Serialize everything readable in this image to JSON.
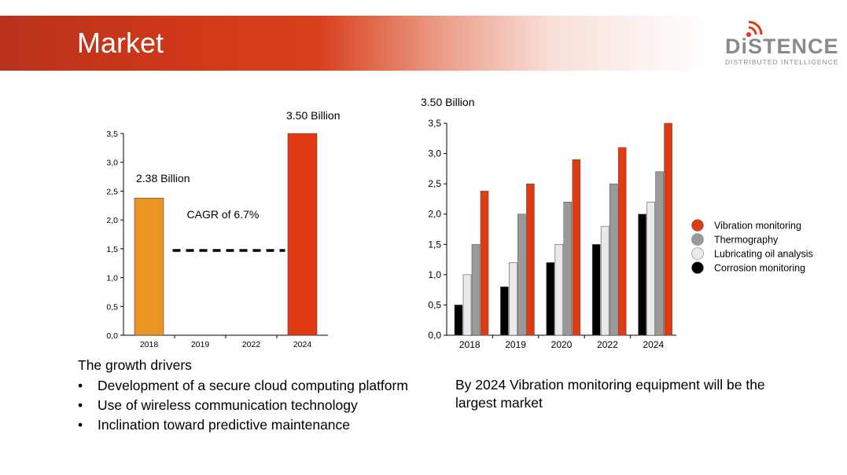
{
  "slide": {
    "title": "Market"
  },
  "logo": {
    "word": "DiSTENCE",
    "tagline": "DISTRIBUTED INTELLIGENCE"
  },
  "colors": {
    "vibration": "#e03a12",
    "thermography": "#9a9a9a",
    "lubricating": "#eaeaea",
    "corrosion": "#000000",
    "bar_2018": "#eb9524"
  },
  "chart_data": [
    {
      "type": "bar",
      "categories": [
        "2018",
        "2019",
        "2022",
        "2024"
      ],
      "values": [
        2.38,
        null,
        null,
        3.5
      ],
      "ylim": [
        0,
        3.5
      ],
      "yticks": [
        "0,0",
        "0,5",
        "1,0",
        "1,5",
        "2,0",
        "2,5",
        "3,0",
        "3,5"
      ],
      "annotations": {
        "label_2018": "2.38 Billion",
        "label_2024": "3.50 Billion",
        "cagr": "CAGR of 6.7%"
      }
    },
    {
      "type": "bar",
      "title": "3.50 Billion",
      "categories": [
        "2018",
        "2019",
        "2020",
        "2022",
        "2024"
      ],
      "ylim": [
        0,
        3.5
      ],
      "yticks": [
        "0,0",
        "0,5",
        "1,0",
        "1,5",
        "2,0",
        "2,5",
        "3,0",
        "3,5"
      ],
      "series": [
        {
          "name": "Corrosion monitoring",
          "values": [
            0.5,
            0.8,
            1.2,
            1.5,
            2.0
          ]
        },
        {
          "name": "Lubricating oil analysis",
          "values": [
            1.0,
            1.2,
            1.5,
            1.8,
            2.2
          ]
        },
        {
          "name": "Thermography",
          "values": [
            1.5,
            2.0,
            2.2,
            2.5,
            2.7
          ]
        },
        {
          "name": "Vibration monitoring",
          "values": [
            2.38,
            2.5,
            2.9,
            3.1,
            3.5
          ]
        }
      ],
      "legend": [
        "Vibration monitoring",
        "Thermography",
        "Lubricating oil analysis",
        "Corrosion monitoring"
      ],
      "legend_position": "right"
    }
  ],
  "drivers": {
    "heading": "The growth drivers",
    "items": [
      "Development of a secure cloud computing platform",
      "Use of wireless communication technology",
      "Inclination toward predictive maintenance"
    ]
  },
  "conclusion": "By 2024 Vibration monitoring equipment will be the largest market"
}
